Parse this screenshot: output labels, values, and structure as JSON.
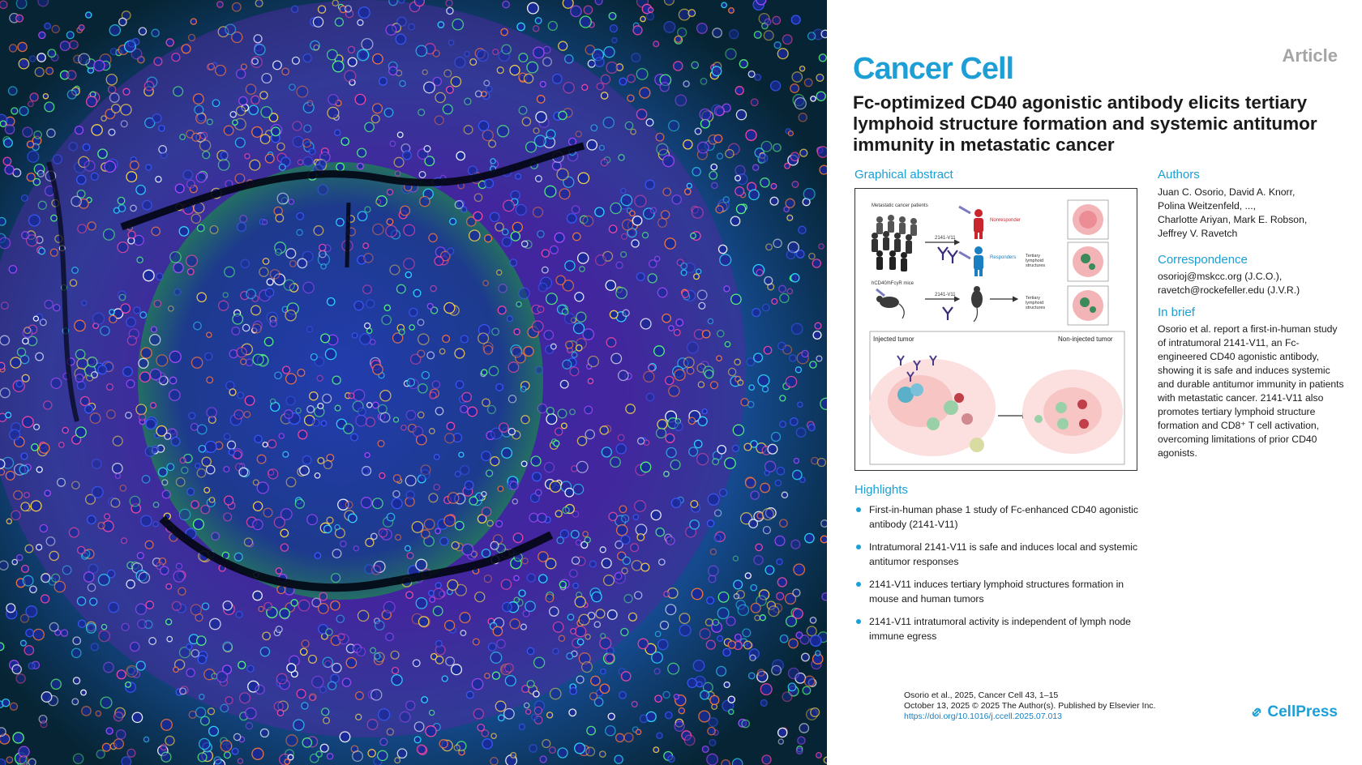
{
  "article_type": "Article",
  "journal": "Cancer Cell",
  "title": "Fc-optimized CD40 agonistic antibody elicits tertiary lymphoid structure formation and systemic antitumor immunity in metastatic cancer",
  "graphical_abstract": {
    "heading": "Graphical abstract",
    "labels": {
      "patients": "Metastatic cancer patients",
      "drug1": "2141-V11",
      "nonresponder": "Nonresponder",
      "responders": "Responders",
      "tls1": "Tertiary lymphoid structures",
      "mice": "hCD40/hFcγR mice",
      "drug2": "2141-V11",
      "tls2": "Tertiary lymphoid structures",
      "injected": "Injected tumor",
      "noninjected": "Non-injected tumor"
    }
  },
  "authors": {
    "heading": "Authors",
    "lines": [
      "Juan C. Osorio, David A. Knorr,",
      "Polina Weitzenfeld, ...,",
      "Charlotte Ariyan, Mark E. Robson,",
      "Jeffrey V. Ravetch"
    ]
  },
  "correspondence": {
    "heading": "Correspondence",
    "lines": [
      "osorioj@mskcc.org (J.C.O.),",
      "ravetch@rockefeller.edu (J.V.R.)"
    ]
  },
  "in_brief": {
    "heading": "In brief",
    "text": "Osorio et al. report a first-in-human study of intratumoral 2141-V11, an Fc-engineered CD40 agonistic antibody, showing it is safe and induces systemic and durable antitumor immunity in patients with metastatic cancer. 2141-V11 also promotes tertiary lymphoid structure formation and CD8⁺ T cell activation, overcoming limitations of prior CD40 agonists."
  },
  "highlights": {
    "heading": "Highlights",
    "items": [
      "First-in-human phase 1 study of Fc-enhanced CD40 agonistic antibody (2141-V11)",
      "Intratumoral 2141-V11 is safe and induces local and systemic antitumor responses",
      "2141-V11 induces tertiary lymphoid structures formation in mouse and human tumors",
      "2141-V11 intratumoral activity is independent of lymph node immune egress"
    ]
  },
  "citation": {
    "line1": "Osorio et al., 2025, Cancer Cell 43, 1–15",
    "line2": "October 13, 2025 © 2025 The Author(s). Published by Elsevier Inc.",
    "doi": "https://doi.org/10.1016/j.ccell.2025.07.013"
  },
  "publisher": "CellPress",
  "colors": {
    "accent": "#1a9fd6",
    "article_type": "#a5a5a5",
    "nonresponder": "#c8262c",
    "responder": "#1a7fc0"
  }
}
